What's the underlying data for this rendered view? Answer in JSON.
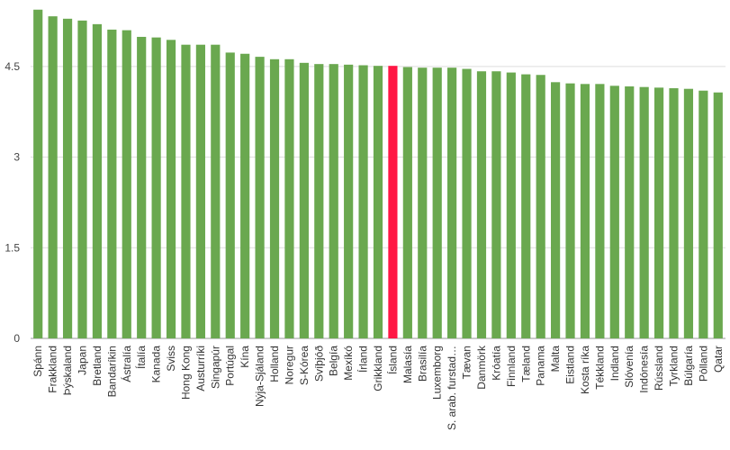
{
  "chart_data": {
    "type": "bar",
    "title": "",
    "xlabel": "",
    "ylabel": "",
    "ylim": [
      0,
      5.6
    ],
    "yticks": [
      0,
      1.5,
      3,
      4.5
    ],
    "ytick_labels": [
      "0",
      "1.5",
      "3",
      "4.5"
    ],
    "grid": "horizontal",
    "legend": "none",
    "categories": [
      "Spánn",
      "Frakkland",
      "Þýskaland",
      "Japan",
      "Bretland",
      "Bandaríkin",
      "Ástralía",
      "Ítalía",
      "Kanada",
      "Sviss",
      "Hong Kong",
      "Austurríki",
      "Singapúr",
      "Portúgal",
      "Kína",
      "Nýja-Sjáland",
      "Holland",
      "Noregur",
      "S-Kórea",
      "Svíþjóð",
      "Belgía",
      "Mexíkó",
      "Írland",
      "Grikkland",
      "Ísland",
      "Malasía",
      "Brasilía",
      "Luxemborg",
      "S. arab. furstad…",
      "Tævan",
      "Danmörk",
      "Króatía",
      "Finnland",
      "Tæland",
      "Panama",
      "Malta",
      "Eistland",
      "Kosta ríka",
      "Tékkland",
      "Indland",
      "Slóvenía",
      "Indónesía",
      "Rússland",
      "Tyrkland",
      "Búlgaría",
      "Pólland",
      "Qatar"
    ],
    "values": [
      5.44,
      5.33,
      5.29,
      5.26,
      5.2,
      5.11,
      5.1,
      4.99,
      4.98,
      4.94,
      4.86,
      4.86,
      4.86,
      4.73,
      4.71,
      4.66,
      4.62,
      4.62,
      4.56,
      4.54,
      4.54,
      4.53,
      4.52,
      4.51,
      4.51,
      4.49,
      4.48,
      4.48,
      4.48,
      4.46,
      4.42,
      4.42,
      4.4,
      4.37,
      4.36,
      4.24,
      4.22,
      4.21,
      4.21,
      4.18,
      4.17,
      4.16,
      4.15,
      4.14,
      4.13,
      4.1,
      4.07
    ],
    "highlight": "Ísland",
    "colors": {
      "bar": "#6aa84f",
      "highlight": "#ff1744",
      "grid": "#dddddd",
      "axis": "#999999"
    }
  }
}
